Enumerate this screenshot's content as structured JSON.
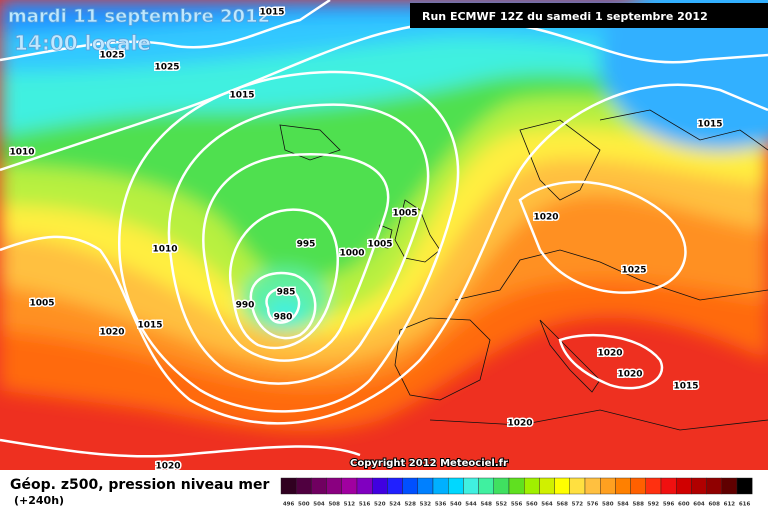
{
  "header": {
    "date": "mardi 11 septembre 2012",
    "time": "14:00 locale",
    "run": "Run ECMWF 12Z du samedi 1 septembre 2012"
  },
  "isobar_labels": [
    1015,
    1025,
    1025,
    1015,
    1010,
    1015,
    1005,
    1020,
    1010,
    995,
    1005,
    1000,
    1025,
    985,
    1005,
    990,
    980,
    1015,
    1020,
    1020,
    1020,
    1015,
    1020,
    1020
  ],
  "copyright": "Copyright 2012 Meteociel.fr",
  "legend": {
    "title": "Géop. z500, pression niveau mer",
    "lead": "(+240h)",
    "values": [
      496,
      500,
      504,
      508,
      512,
      516,
      520,
      524,
      528,
      532,
      536,
      540,
      544,
      548,
      552,
      556,
      560,
      564,
      568,
      572,
      576,
      580,
      584,
      588,
      592,
      596,
      600,
      604,
      608,
      612,
      616
    ],
    "colors": [
      "#300020",
      "#500040",
      "#700060",
      "#8a0080",
      "#a000a0",
      "#8000c0",
      "#4000e0",
      "#2020ff",
      "#0050ff",
      "#0080ff",
      "#00b0ff",
      "#00d8ff",
      "#40f0e0",
      "#40f0a0",
      "#40e060",
      "#60e020",
      "#a0f000",
      "#d0f000",
      "#ffff00",
      "#ffe040",
      "#ffc040",
      "#ffa020",
      "#ff8000",
      "#ff6000",
      "#ff3010",
      "#f01010",
      "#d00000",
      "#b00000",
      "#900000",
      "#600000",
      "#000000"
    ]
  }
}
